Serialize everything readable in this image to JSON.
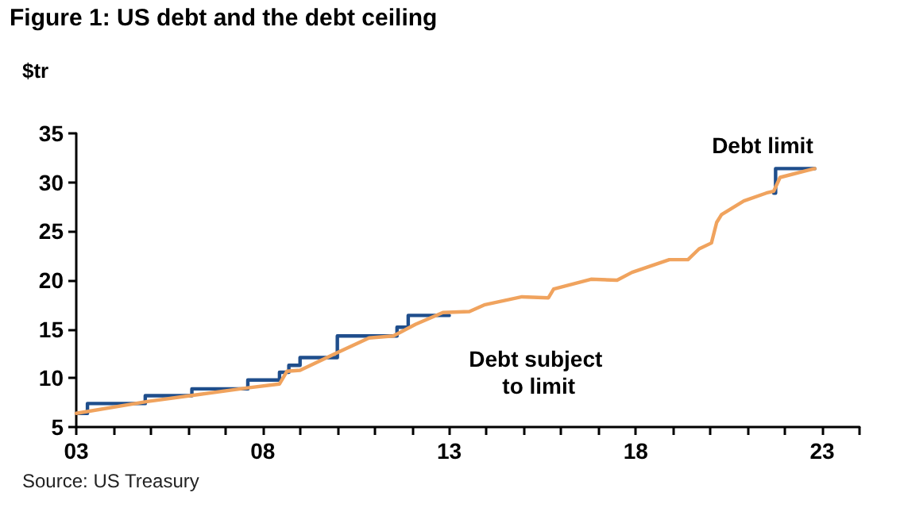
{
  "chart_data": {
    "type": "line",
    "title": "Figure 1: US debt and the debt ceiling",
    "ylabel": "$tr",
    "annotations": [
      "Source: US Treasury"
    ],
    "series": [
      {
        "name": "Debt limit",
        "type": "step",
        "color": "#1f4e8c",
        "x": [
          2003,
          2003.3,
          2004.85,
          2006.1,
          2007.6,
          2008.45,
          2008.7,
          2009.0,
          2010.0,
          2011.6,
          2011.9,
          2012.7,
          2013,
          2021.7,
          2021.75,
          2022.8
        ],
        "values": [
          6.4,
          7.4,
          8.2,
          8.9,
          9.8,
          10.6,
          11.3,
          12.1,
          14.3,
          15.2,
          16.4,
          16.4,
          null,
          28.9,
          31.4,
          31.4
        ]
      },
      {
        "name": "Debt subject to limit",
        "color": "#f0a35e",
        "x": [
          2003.0,
          2004.9,
          2006.05,
          2007.6,
          2008.45,
          2008.65,
          2009.0,
          2010.0,
          2010.85,
          2011.5,
          2012.1,
          2012.83,
          2013.54,
          2013.96,
          2014.95,
          2015.66,
          2015.8,
          2016.8,
          2017.5,
          2017.9,
          2018.9,
          2019.4,
          2019.7,
          2020.03,
          2020.17,
          2020.3,
          2020.9,
          2021.5,
          2021.7,
          2021.87,
          2022.8
        ],
        "values": [
          6.4,
          7.6,
          8.2,
          9.0,
          9.4,
          10.7,
          10.8,
          12.6,
          14.1,
          14.3,
          15.5,
          16.7,
          16.8,
          17.5,
          18.3,
          18.2,
          19.1,
          20.1,
          20.0,
          20.8,
          22.1,
          22.1,
          23.2,
          23.8,
          25.9,
          26.7,
          28.1,
          28.9,
          29.1,
          30.5,
          31.4
        ]
      }
    ],
    "xlim": [
      2003,
      2024
    ],
    "xticks": [
      {
        "value": 2003,
        "label": "03"
      },
      {
        "value": 2004,
        "label": null
      },
      {
        "value": 2005,
        "label": null
      },
      {
        "value": 2006,
        "label": null
      },
      {
        "value": 2007,
        "label": null
      },
      {
        "value": 2008,
        "label": "08"
      },
      {
        "value": 2009,
        "label": null
      },
      {
        "value": 2010,
        "label": null
      },
      {
        "value": 2011,
        "label": null
      },
      {
        "value": 2012,
        "label": null
      },
      {
        "value": 2013,
        "label": "13"
      },
      {
        "value": 2014,
        "label": null
      },
      {
        "value": 2015,
        "label": null
      },
      {
        "value": 2016,
        "label": null
      },
      {
        "value": 2017,
        "label": null
      },
      {
        "value": 2018,
        "label": "18"
      },
      {
        "value": 2019,
        "label": null
      },
      {
        "value": 2020,
        "label": null
      },
      {
        "value": 2021,
        "label": null
      },
      {
        "value": 2022,
        "label": null
      },
      {
        "value": 2023,
        "label": "23"
      },
      {
        "value": 2024,
        "label": null
      }
    ],
    "ylim": [
      5,
      35
    ],
    "yticks": [
      5,
      10,
      15,
      20,
      25,
      30,
      35
    ],
    "grid": false,
    "legend": false,
    "marker": "none",
    "line_style": "solid"
  }
}
